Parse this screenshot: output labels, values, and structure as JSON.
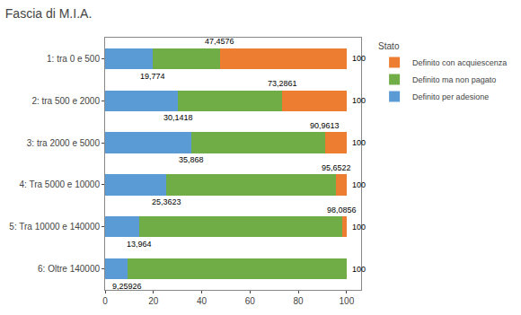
{
  "chart_data": {
    "type": "bar",
    "orientation": "horizontal",
    "stacked": true,
    "title": "Fascia di M.I.A.",
    "categories": [
      "1: tra 0 e 500",
      "2: tra 500 e 2000",
      "3: tra 2000 e 5000",
      "4: Tra 5000 e 10000",
      "5: Tra 10000 e 140000",
      "6: Oltre 140000"
    ],
    "series": [
      {
        "name": "Definito per adesione",
        "color": "#5B9BD5",
        "values": [
          19.774,
          30.1418,
          35.868,
          25.3623,
          13.964,
          9.25926
        ]
      },
      {
        "name": "Definito ma non pagato",
        "color": "#70AD47",
        "values": [
          27.6836,
          43.1443,
          55.0933,
          70.2899,
          84.1216,
          90.74074
        ]
      },
      {
        "name": "Definito con acquiescenza",
        "color": "#ED7D31",
        "values": [
          52.5424,
          26.7139,
          9.0387,
          4.3478,
          1.9144,
          0.0
        ]
      }
    ],
    "xlim": [
      0,
      106
    ],
    "xticks": [
      0,
      20,
      40,
      60,
      80,
      100
    ],
    "grid": false,
    "legend": "right",
    "legend_title": "Stato",
    "annotations": [
      {
        "text": "19,774",
        "x": 19.774,
        "category": "1: tra 0 e 500",
        "position": "below"
      },
      {
        "text": "30,1418",
        "x": 30.1418,
        "category": "2: tra 500 e 2000",
        "position": "below"
      },
      {
        "text": "35,868",
        "x": 35.868,
        "category": "3: tra 2000 e 5000",
        "position": "below"
      },
      {
        "text": "25,3623",
        "x": 25.3623,
        "category": "4: Tra 5000 e 10000",
        "position": "below"
      },
      {
        "text": "13,964",
        "x": 13.964,
        "category": "5: Tra 10000 e 140000",
        "position": "below"
      },
      {
        "text": "9,25926",
        "x": 9.25926,
        "category": "6: Oltre 140000",
        "position": "below"
      },
      {
        "text": "47,4576",
        "x": 47.4576,
        "category": "1: tra 0 e 500",
        "position": "above"
      },
      {
        "text": "73,2861",
        "x": 73.2861,
        "category": "2: tra 500 e 2000",
        "position": "above"
      },
      {
        "text": "90,9613",
        "x": 90.9613,
        "category": "3: tra 2000 e 5000",
        "position": "above"
      },
      {
        "text": "95,6522",
        "x": 95.6522,
        "category": "4: Tra 5000 e 10000",
        "position": "above"
      },
      {
        "text": "98,0856",
        "x": 98.0856,
        "category": "5: Tra 10000 e 140000",
        "position": "above"
      },
      {
        "text": "100",
        "x": 100,
        "category": "1: tra 0 e 500",
        "position": "right"
      },
      {
        "text": "100",
        "x": 100,
        "category": "2: tra 500 e 2000",
        "position": "right"
      },
      {
        "text": "100",
        "x": 100,
        "category": "3: tra 2000 e 5000",
        "position": "right"
      },
      {
        "text": "100",
        "x": 100,
        "category": "4: Tra 5000 e 10000",
        "position": "right"
      },
      {
        "text": "100",
        "x": 100,
        "category": "5: Tra 10000 e 140000",
        "position": "right"
      },
      {
        "text": "100",
        "x": 100,
        "category": "6: Oltre 140000",
        "position": "right"
      }
    ]
  }
}
